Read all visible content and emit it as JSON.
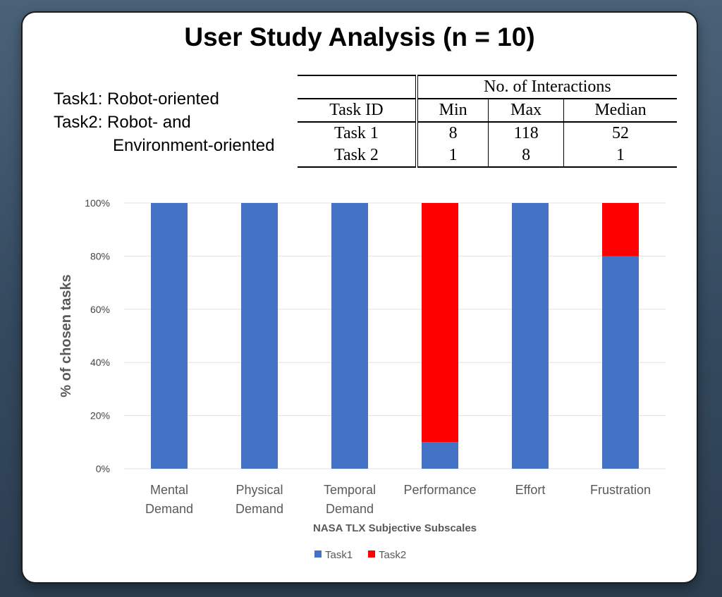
{
  "title": "User Study Analysis (n = 10)",
  "task_notes": {
    "line1": "Task1: Robot-oriented",
    "line2": "Task2: Robot- and",
    "line3": "Environment-oriented"
  },
  "interactions_table": {
    "group_header": "No. of Interactions",
    "columns": [
      "Task ID",
      "Min",
      "Max",
      "Median"
    ],
    "rows": [
      [
        "Task 1",
        "8",
        "118",
        "52"
      ],
      [
        "Task 2",
        "1",
        "8",
        "1"
      ]
    ]
  },
  "chart_data": {
    "type": "bar",
    "stacked": true,
    "categories": [
      [
        "Mental",
        "Demand"
      ],
      [
        "Physical",
        "Demand"
      ],
      [
        "Temporal",
        "Demand"
      ],
      [
        "Performance"
      ],
      [
        "Effort"
      ],
      [
        "Frustration"
      ]
    ],
    "series": [
      {
        "name": "Task1",
        "color": "#4472c4",
        "values": [
          100,
          100,
          100,
          10,
          100,
          80
        ]
      },
      {
        "name": "Task2",
        "color": "#ff0000",
        "values": [
          0,
          0,
          0,
          90,
          0,
          20
        ]
      }
    ],
    "ylim": [
      0,
      100
    ],
    "yticks": [
      "0%",
      "20%",
      "40%",
      "60%",
      "80%",
      "100%"
    ],
    "ylabel": "% of chosen tasks",
    "xlabel": "NASA TLX  Subjective Subscales",
    "grid": true,
    "legend_position": "bottom"
  }
}
